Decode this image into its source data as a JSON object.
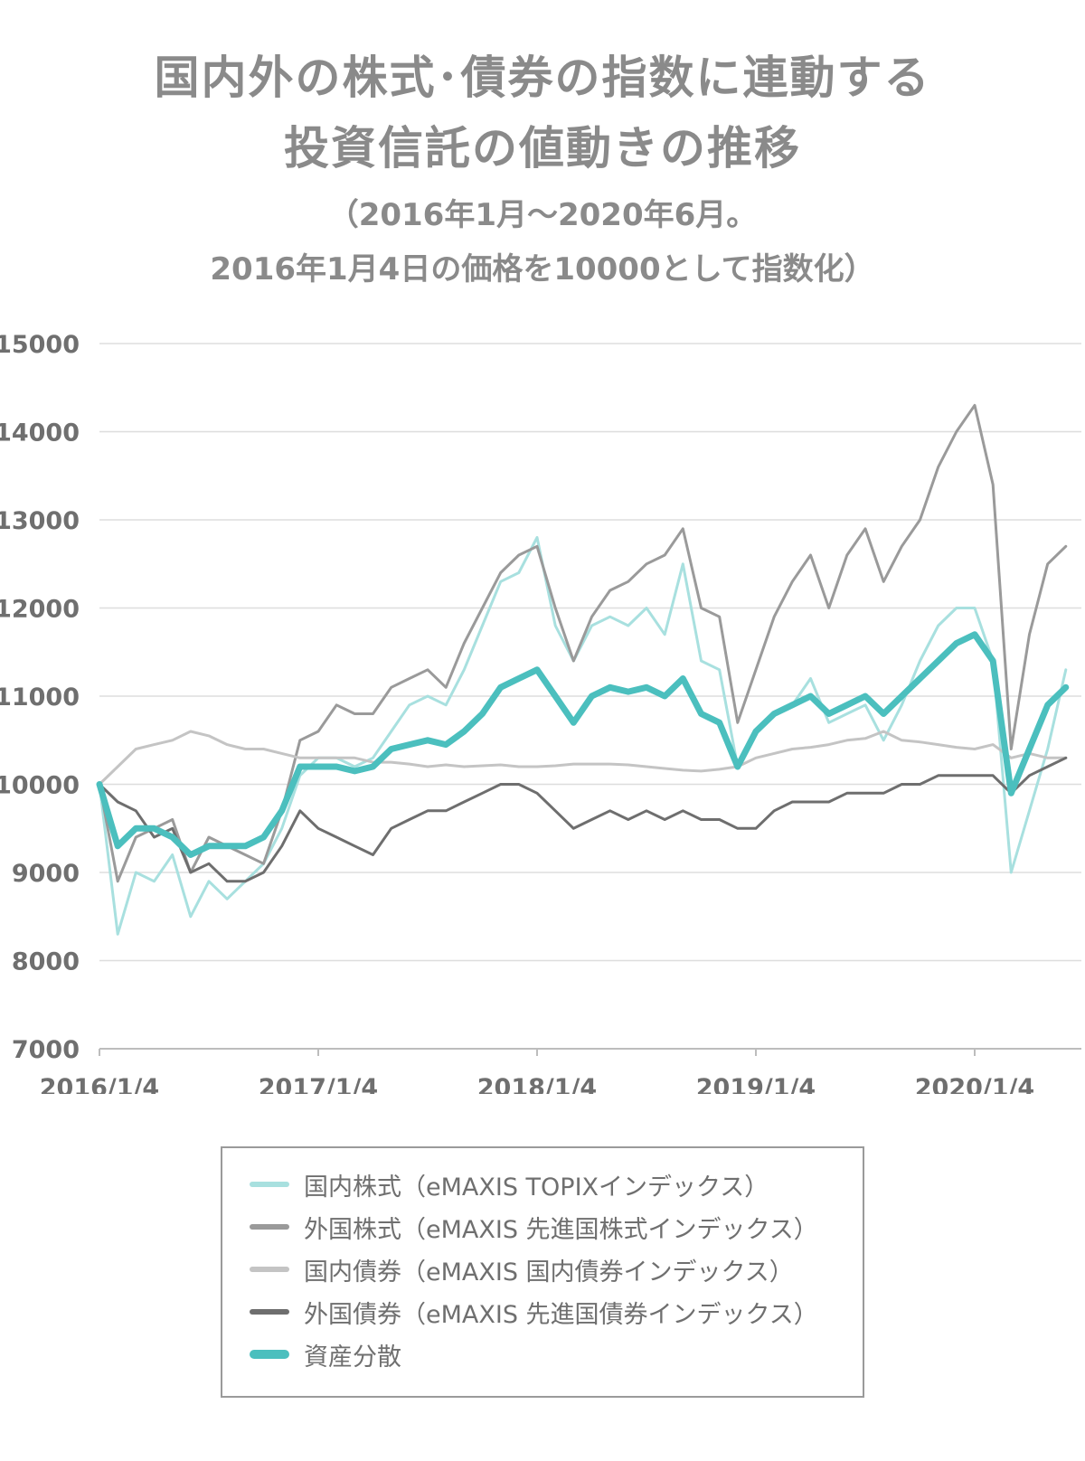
{
  "title": {
    "line1": "国内外の株式･債券の指数に連動する",
    "line2": "投資信託の値動きの推移"
  },
  "subtitle": {
    "line1": "（2016年1月～2020年6月。",
    "line2": "2016年1月4日の価格を10000として指数化）"
  },
  "colors": {
    "domestic_stock": "#a8e0df",
    "foreign_stock": "#9a9a9a",
    "domestic_bond": "#c4c4c4",
    "foreign_bond": "#6e6e6e",
    "diversified": "#4bbfbe",
    "grid": "#dddddd"
  },
  "chart_data": {
    "type": "line",
    "title": "",
    "xlabel": "",
    "ylabel": "",
    "ylim": [
      7000,
      15000
    ],
    "yticks": [
      "15000",
      "14000",
      "13000",
      "12000",
      "11000",
      "10000",
      "9000",
      "8000",
      "7000"
    ],
    "xticks": [
      "2016/1/4",
      "2017/1/4",
      "2018/1/4",
      "2019/1/4",
      "2020/1/4"
    ],
    "x": [
      "2016/1",
      "2016/2",
      "2016/3",
      "2016/4",
      "2016/5",
      "2016/6",
      "2016/7",
      "2016/8",
      "2016/9",
      "2016/10",
      "2016/11",
      "2016/12",
      "2017/1",
      "2017/2",
      "2017/3",
      "2017/4",
      "2017/5",
      "2017/6",
      "2017/7",
      "2017/8",
      "2017/9",
      "2017/10",
      "2017/11",
      "2017/12",
      "2018/1",
      "2018/2",
      "2018/3",
      "2018/4",
      "2018/5",
      "2018/6",
      "2018/7",
      "2018/8",
      "2018/9",
      "2018/10",
      "2018/11",
      "2018/12",
      "2019/1",
      "2019/2",
      "2019/3",
      "2019/4",
      "2019/5",
      "2019/6",
      "2019/7",
      "2019/8",
      "2019/9",
      "2019/10",
      "2019/11",
      "2019/12",
      "2020/1",
      "2020/2",
      "2020/3",
      "2020/4",
      "2020/5",
      "2020/6"
    ],
    "grid": true,
    "legend_position": "bottom",
    "series": [
      {
        "key": "domestic_stock",
        "name": "国内株式（eMAXIS TOPIXインデックス）",
        "values": [
          10000,
          8300,
          9000,
          8900,
          9200,
          8500,
          8900,
          8700,
          8900,
          9100,
          9500,
          10100,
          10300,
          10300,
          10200,
          10300,
          10600,
          10900,
          11000,
          10900,
          11300,
          11800,
          12300,
          12400,
          12800,
          11800,
          11400,
          11800,
          11900,
          11800,
          12000,
          11700,
          12500,
          11400,
          11300,
          10200,
          10600,
          10800,
          10900,
          11200,
          10700,
          10800,
          10900,
          10500,
          10900,
          11400,
          11800,
          12000,
          12000,
          11400,
          9000,
          9700,
          10400,
          11300
        ]
      },
      {
        "key": "foreign_stock",
        "name": "外国株式（eMAXIS 先進国株式インデックス）",
        "values": [
          10000,
          8900,
          9400,
          9500,
          9600,
          9000,
          9400,
          9300,
          9200,
          9100,
          9700,
          10500,
          10600,
          10900,
          10800,
          10800,
          11100,
          11200,
          11300,
          11100,
          11600,
          12000,
          12400,
          12600,
          12700,
          12000,
          11400,
          11900,
          12200,
          12300,
          12500,
          12600,
          12900,
          12000,
          11900,
          10700,
          11300,
          11900,
          12300,
          12600,
          12000,
          12600,
          12900,
          12300,
          12700,
          13000,
          13600,
          14000,
          14300,
          13400,
          10400,
          11700,
          12500,
          12700
        ]
      },
      {
        "key": "domestic_bond",
        "name": "国内債券（eMAXIS 国内債券インデックス）",
        "values": [
          10000,
          10200,
          10400,
          10450,
          10500,
          10600,
          10550,
          10450,
          10400,
          10400,
          10350,
          10300,
          10300,
          10300,
          10300,
          10250,
          10250,
          10230,
          10200,
          10220,
          10200,
          10210,
          10220,
          10200,
          10200,
          10210,
          10230,
          10230,
          10230,
          10220,
          10200,
          10180,
          10160,
          10150,
          10170,
          10200,
          10300,
          10350,
          10400,
          10420,
          10450,
          10500,
          10520,
          10600,
          10500,
          10480,
          10450,
          10420,
          10400,
          10450,
          10300,
          10350,
          10300,
          10300
        ]
      },
      {
        "key": "foreign_bond",
        "name": "外国債券（eMAXIS 先進国債券インデックス）",
        "values": [
          10000,
          9800,
          9700,
          9400,
          9500,
          9000,
          9100,
          8900,
          8900,
          9000,
          9300,
          9700,
          9500,
          9400,
          9300,
          9200,
          9500,
          9600,
          9700,
          9700,
          9800,
          9900,
          10000,
          10000,
          9900,
          9700,
          9500,
          9600,
          9700,
          9600,
          9700,
          9600,
          9700,
          9600,
          9600,
          9500,
          9500,
          9700,
          9800,
          9800,
          9800,
          9900,
          9900,
          9900,
          10000,
          10000,
          10100,
          10100,
          10100,
          10100,
          9900,
          10100,
          10200,
          10300
        ]
      },
      {
        "key": "diversified",
        "name": "資産分散",
        "values": [
          10000,
          9300,
          9500,
          9500,
          9400,
          9200,
          9300,
          9300,
          9300,
          9400,
          9700,
          10200,
          10200,
          10200,
          10150,
          10200,
          10400,
          10450,
          10500,
          10450,
          10600,
          10800,
          11100,
          11200,
          11300,
          11000,
          10700,
          11000,
          11100,
          11050,
          11100,
          11000,
          11200,
          10800,
          10700,
          10200,
          10600,
          10800,
          10900,
          11000,
          10800,
          10900,
          11000,
          10800,
          11000,
          11200,
          11400,
          11600,
          11700,
          11400,
          9900,
          10400,
          10900,
          11100
        ]
      }
    ]
  }
}
